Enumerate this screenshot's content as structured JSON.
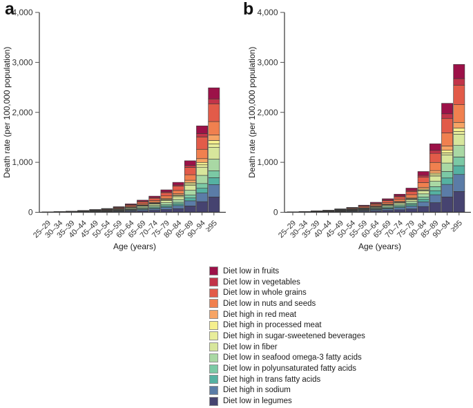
{
  "figure": {
    "style": {
      "axis_color": "#333333",
      "bar_outline": "#3a3a3a",
      "tick_color": "#4d4d4d",
      "text_color": "#333333"
    }
  },
  "chart_data": [
    {
      "type": "bar",
      "stacked": true,
      "panel_label": "a",
      "title": "",
      "xlabel": "Age (years)",
      "ylabel": "Death rate (per 100,000 population)",
      "ylim": [
        0,
        4000
      ],
      "ytick_values": [
        0,
        1000,
        2000,
        3000,
        4000
      ],
      "ytick_labels": [
        "0",
        "1,000",
        "2,000",
        "3,000",
        "4,000"
      ],
      "grid": false,
      "legend_position": "bottom-center",
      "categories": [
        "25–29",
        "30–34",
        "35–39",
        "40–44",
        "45–49",
        "50–54",
        "55–59",
        "60–64",
        "65–69",
        "70–74",
        "75–79",
        "80–84",
        "85–89",
        "90–94",
        "≥95"
      ],
      "series": [
        {
          "name": "Diet low in fruits",
          "color": "#9c1148",
          "values": [
            1,
            1,
            2,
            3,
            5,
            7,
            10,
            15,
            22,
            29,
            40,
            53,
            92,
            154,
            222
          ]
        },
        {
          "name": "Diet low in vegetables",
          "color": "#c23449",
          "values": [
            0,
            1,
            1,
            1,
            2,
            3,
            4,
            7,
            9,
            13,
            17,
            23,
            40,
            67,
            97
          ]
        },
        {
          "name": "Diet low in whole grains",
          "color": "#e25b49",
          "values": [
            1,
            2,
            3,
            5,
            8,
            11,
            16,
            24,
            35,
            46,
            64,
            86,
            147,
            247,
            356
          ]
        },
        {
          "name": "Diet low in nuts and seeds",
          "color": "#f0804f",
          "values": [
            1,
            2,
            2,
            4,
            6,
            8,
            12,
            18,
            26,
            35,
            48,
            65,
            111,
            187,
            269
          ]
        },
        {
          "name": "Diet high in red meat",
          "color": "#f6a465",
          "values": [
            0,
            1,
            1,
            2,
            2,
            3,
            5,
            7,
            11,
            14,
            20,
            26,
            45,
            76,
            110
          ]
        },
        {
          "name": "Diet high in processed meat",
          "color": "#f5ef8e",
          "values": [
            0,
            0,
            1,
            1,
            2,
            2,
            3,
            5,
            7,
            9,
            13,
            17,
            29,
            48,
            70
          ]
        },
        {
          "name": "Diet high in sugar-sweetened beverages",
          "color": "#e8ed9a",
          "values": [
            0,
            0,
            1,
            1,
            2,
            2,
            3,
            5,
            7,
            9,
            13,
            17,
            29,
            48,
            70
          ]
        },
        {
          "name": "Diet low in fiber",
          "color": "#d7e69c",
          "values": [
            1,
            1,
            2,
            3,
            5,
            7,
            11,
            16,
            23,
            30,
            42,
            56,
            97,
            163,
            234
          ]
        },
        {
          "name": "Diet low in seafood omega-3 fatty acids",
          "color": "#a9d8a4",
          "values": [
            1,
            1,
            2,
            3,
            5,
            7,
            11,
            16,
            23,
            30,
            42,
            56,
            97,
            163,
            234
          ]
        },
        {
          "name": "Diet low in polyunsaturated fatty acids",
          "color": "#7bc9a5",
          "values": [
            1,
            1,
            1,
            2,
            3,
            4,
            6,
            9,
            13,
            18,
            25,
            33,
            57,
            95,
            137
          ]
        },
        {
          "name": "Diet high in trans fatty acids",
          "color": "#55b1a2",
          "values": [
            1,
            1,
            1,
            2,
            3,
            4,
            6,
            9,
            13,
            18,
            25,
            33,
            57,
            95,
            137
          ]
        },
        {
          "name": "Diet high in sodium",
          "color": "#5b7ca7",
          "values": [
            1,
            1,
            2,
            4,
            6,
            8,
            11,
            17,
            24,
            32,
            45,
            60,
            103,
            173,
            249
          ]
        },
        {
          "name": "Diet low in legumes",
          "color": "#464370",
          "values": [
            1,
            2,
            3,
            5,
            7,
            10,
            14,
            21,
            30,
            40,
            55,
            74,
            127,
            213,
            306
          ]
        }
      ]
    },
    {
      "type": "bar",
      "stacked": true,
      "panel_label": "b",
      "title": "",
      "xlabel": "Age (years)",
      "ylabel": "Death rate (per 100,000 population)",
      "ylim": [
        0,
        4000
      ],
      "ytick_values": [
        0,
        1000,
        2000,
        3000,
        4000
      ],
      "ytick_labels": [
        "0",
        "1,000",
        "2,000",
        "3,000",
        "4,000"
      ],
      "grid": false,
      "legend_position": "bottom-center",
      "categories": [
        "25–29",
        "30–34",
        "35–39",
        "40–44",
        "45–49",
        "50–54",
        "55–59",
        "60–64",
        "65–69",
        "70–74",
        "75–79",
        "80–84",
        "85–89",
        "90–94",
        "≥95"
      ],
      "series": [
        {
          "name": "Diet low in fruits",
          "color": "#9c1148",
          "values": [
            1,
            1,
            3,
            4,
            7,
            9,
            14,
            19,
            26,
            35,
            46,
            78,
            132,
            209,
            284
          ]
        },
        {
          "name": "Diet low in vegetables",
          "color": "#c23449",
          "values": [
            0,
            1,
            1,
            2,
            3,
            4,
            6,
            9,
            12,
            16,
            21,
            36,
            60,
            96,
            130
          ]
        },
        {
          "name": "Diet low in whole grains",
          "color": "#e25b49",
          "values": [
            1,
            2,
            4,
            6,
            9,
            13,
            19,
            26,
            36,
            48,
            64,
            108,
            181,
            288,
            391
          ]
        },
        {
          "name": "Diet low in nuts and seeds",
          "color": "#f0804f",
          "values": [
            1,
            2,
            3,
            5,
            8,
            12,
            17,
            24,
            33,
            44,
            58,
            98,
            164,
            262,
            355
          ]
        },
        {
          "name": "Diet high in red meat",
          "color": "#f6a465",
          "values": [
            1,
            1,
            1,
            2,
            3,
            4,
            6,
            8,
            11,
            14,
            19,
            32,
            53,
            85,
            115
          ]
        },
        {
          "name": "Diet high in processed meat",
          "color": "#f5ef8e",
          "values": [
            0,
            0,
            1,
            1,
            2,
            2,
            3,
            5,
            6,
            8,
            11,
            19,
            32,
            50,
            68
          ]
        },
        {
          "name": "Diet high in sugar-sweetened beverages",
          "color": "#e8ed9a",
          "values": [
            0,
            0,
            1,
            1,
            1,
            2,
            3,
            4,
            5,
            7,
            9,
            15,
            26,
            41,
            56
          ]
        },
        {
          "name": "Diet low in fiber",
          "color": "#d7e69c",
          "values": [
            1,
            1,
            2,
            3,
            5,
            7,
            11,
            15,
            20,
            27,
            36,
            61,
            103,
            164,
            222
          ]
        },
        {
          "name": "Diet low in seafood omega-3 fatty acids",
          "color": "#a9d8a4",
          "values": [
            1,
            1,
            2,
            3,
            5,
            8,
            11,
            15,
            21,
            28,
            38,
            64,
            107,
            170,
            231
          ]
        },
        {
          "name": "Diet low in polyunsaturated fatty acids",
          "color": "#7bc9a5",
          "values": [
            0,
            1,
            2,
            2,
            4,
            6,
            8,
            12,
            16,
            21,
            29,
            48,
            81,
            129,
            175
          ]
        },
        {
          "name": "Diet high in trans fatty acids",
          "color": "#55b1a2",
          "values": [
            1,
            1,
            2,
            2,
            4,
            6,
            8,
            12,
            16,
            21,
            29,
            48,
            81,
            129,
            175
          ]
        },
        {
          "name": "Diet high in sodium",
          "color": "#5b7ca7",
          "values": [
            1,
            2,
            3,
            5,
            8,
            11,
            16,
            23,
            31,
            42,
            56,
            94,
            158,
            251,
            340
          ]
        },
        {
          "name": "Diet low in legumes",
          "color": "#464370",
          "values": [
            2,
            2,
            4,
            6,
            10,
            14,
            20,
            28,
            38,
            51,
            68,
            115,
            193,
            307,
            417
          ]
        }
      ]
    }
  ]
}
